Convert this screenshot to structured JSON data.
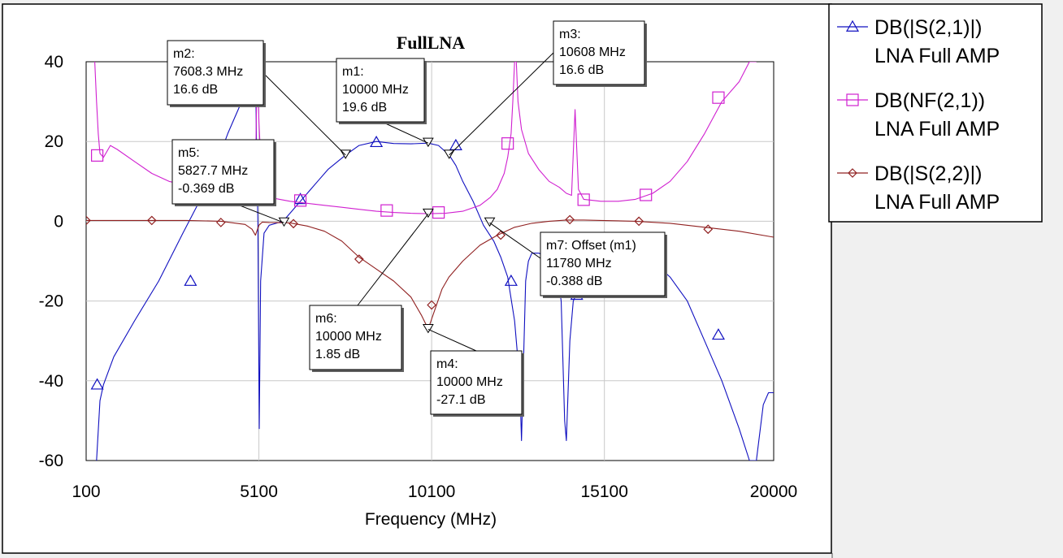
{
  "chart_data": {
    "type": "line",
    "title": "FullLNA",
    "xlabel": "Frequency (MHz)",
    "ylabel": "",
    "xlim": [
      100,
      20000
    ],
    "ylim": [
      -60,
      40
    ],
    "x_ticks": [
      100,
      5100,
      10100,
      15100,
      20000
    ],
    "y_ticks": [
      40,
      20,
      0,
      -20,
      -40,
      -60
    ],
    "grid": true,
    "legend_position": "right",
    "series": [
      {
        "name": "DB(|S(2,1)|)",
        "subname": "LNA Full AMP",
        "color": "#1010c0",
        "symbol": "triangle-up",
        "x": [
          400,
          500,
          600,
          900,
          1500,
          2200,
          2900,
          3500,
          3900,
          4200,
          4500,
          4700,
          4850,
          4950,
          5000,
          5030,
          5070,
          5110,
          5150,
          5250,
          5400,
          5600,
          5800,
          6000,
          6300,
          6500,
          6800,
          7100,
          7608,
          8000,
          8500,
          9000,
          9500,
          10000,
          10300,
          10608,
          10800,
          11000,
          11300,
          11600,
          11900,
          12100,
          12300,
          12500,
          12650,
          12700,
          12760,
          12820,
          12900,
          13000,
          13200,
          13500,
          13700,
          13850,
          13950,
          14000,
          14100,
          14200,
          14400,
          14600,
          14800,
          15000,
          15500,
          16000,
          16500,
          17000,
          17500,
          18000,
          18500,
          19000,
          19300,
          19500,
          19700,
          19850,
          20000
        ],
        "y": [
          -60,
          -45,
          -41,
          -34,
          -25,
          -15,
          -3,
          7,
          15,
          22,
          28,
          32,
          36,
          38,
          40,
          20,
          0,
          -52,
          -15,
          -3,
          -1,
          -0.5,
          0,
          2,
          5,
          7,
          10,
          13,
          16.6,
          19,
          20,
          19.5,
          19.4,
          19.6,
          19,
          16.6,
          14,
          10,
          5,
          -1,
          -5,
          -9,
          -14,
          -25,
          -40,
          -55,
          -35,
          -15,
          -10,
          -8,
          -8,
          -9,
          -11,
          -20,
          -50,
          -55,
          -30,
          -20,
          -16,
          -12,
          -10,
          -9,
          -8,
          -8,
          -10,
          -14,
          -20,
          -30,
          -40,
          -52,
          -60,
          -60,
          -46,
          -43,
          -43
        ],
        "markers_x": [
          420,
          3120,
          6300,
          8500,
          10800,
          12400,
          14300,
          18400
        ],
        "markers_y": [
          -41,
          -15,
          5.5,
          19.8,
          19,
          -15,
          -18.5,
          -28.5
        ]
      },
      {
        "name": "DB(NF(2,1))",
        "subname": "LNA Full AMP",
        "color": "#d020d0",
        "symbol": "square",
        "x": [
          350,
          400,
          450,
          500,
          600,
          800,
          1000,
          1500,
          2000,
          2500,
          3000,
          3500,
          4000,
          4500,
          4900,
          5000,
          5050,
          5100,
          5200,
          5400,
          5700,
          6000,
          6500,
          7000,
          7500,
          8000,
          8500,
          9000,
          9500,
          10000,
          10500,
          11000,
          11500,
          11800,
          12000,
          12200,
          12300,
          12400,
          12450,
          12500,
          12550,
          12600,
          12700,
          12900,
          13200,
          13500,
          13800,
          14000,
          14150,
          14250,
          14350,
          14500,
          15000,
          15500,
          16000,
          16500,
          17000,
          17500,
          18000,
          18500,
          19000,
          19300,
          19500
        ],
        "y": [
          40,
          30,
          22,
          17,
          16,
          19,
          18,
          15,
          12,
          10,
          9,
          7.5,
          6.5,
          5.5,
          6,
          10,
          40,
          25,
          7,
          6,
          5.5,
          5,
          4.5,
          4,
          3.5,
          3,
          2.5,
          2.2,
          2,
          1.9,
          2,
          2.5,
          4,
          6,
          8,
          12,
          16,
          22,
          30,
          40,
          40,
          30,
          23,
          17,
          13,
          10,
          8.5,
          7,
          6.5,
          28,
          8,
          5.5,
          5,
          5,
          5.5,
          7,
          10,
          15,
          22,
          30,
          35,
          40,
          40
        ],
        "markers_x": [
          420,
          2900,
          6300,
          8800,
          10300,
          12300,
          14500,
          16300,
          18400
        ],
        "markers_y": [
          16.5,
          8.3,
          5.2,
          2.7,
          2.2,
          19.5,
          5.4,
          6.6,
          31
        ],
        "markers_symbols": [],
        "marker_symbol_note": ""
      },
      {
        "name": "DB(|S(2,2)|)",
        "subname": "LNA Full AMP",
        "color": "#902020",
        "symbol": "diamond",
        "x": [
          100,
          1000,
          2000,
          3000,
          4000,
          4700,
          4900,
          5000,
          5100,
          5200,
          5400,
          5600,
          5800,
          6000,
          6500,
          7000,
          7500,
          8000,
          8500,
          9000,
          9500,
          9800,
          10000,
          10200,
          10400,
          10600,
          11000,
          11500,
          12000,
          12500,
          13000,
          13500,
          14000,
          14500,
          15000,
          16000,
          17000,
          18000,
          19000,
          20000
        ],
        "y": [
          0.2,
          0.2,
          0.2,
          0.2,
          0,
          -0.8,
          -2,
          -3.5,
          -1,
          -0.2,
          -0.3,
          -0.35,
          -0.37,
          -0.4,
          -1.2,
          -2.5,
          -5,
          -9,
          -12,
          -15,
          -19,
          -23.5,
          -27,
          -22,
          -17,
          -14,
          -10,
          -6,
          -3.5,
          -1.5,
          -0.5,
          0,
          0.3,
          0.3,
          0.2,
          0,
          -0.5,
          -1.5,
          -2.5,
          -4
        ],
        "markers_x": [
          100,
          2000,
          4000,
          6100,
          8000,
          10100,
          12100,
          14100,
          16100,
          18100
        ],
        "markers_y": [
          0.2,
          0.2,
          -0.3,
          -0.6,
          -9.5,
          -21,
          -3.5,
          0.4,
          0,
          -2
        ]
      }
    ],
    "annotations": [
      {
        "id": "m1",
        "lines": [
          "m1:",
          "10000 MHz",
          "19.6 dB"
        ]
      },
      {
        "id": "m2",
        "lines": [
          "m2:",
          "7608.3 MHz",
          "16.6 dB"
        ]
      },
      {
        "id": "m3",
        "lines": [
          "m3:",
          "10608 MHz",
          "16.6 dB"
        ]
      },
      {
        "id": "m4",
        "lines": [
          "m4:",
          "10000 MHz",
          "-27.1 dB"
        ]
      },
      {
        "id": "m5",
        "lines": [
          "m5:",
          "5827.7 MHz",
          "-0.369 dB"
        ]
      },
      {
        "id": "m6",
        "lines": [
          "m6:",
          "10000 MHz",
          "1.85 dB"
        ]
      },
      {
        "id": "m7",
        "lines": [
          "m7: Offset (m1)",
          "11780 MHz",
          "-0.388 dB"
        ]
      }
    ],
    "marker_points": [
      {
        "id": "m1",
        "x": 10000,
        "y": 19.6
      },
      {
        "id": "m2",
        "x": 7608.3,
        "y": 16.6
      },
      {
        "id": "m3",
        "x": 10608,
        "y": 16.6
      },
      {
        "id": "m4",
        "x": 10000,
        "y": -27.1
      },
      {
        "id": "m5",
        "x": 5827.7,
        "y": -0.369
      },
      {
        "id": "m6",
        "x": 10000,
        "y": 1.85
      },
      {
        "id": "m7",
        "x": 11780,
        "y": -0.388
      }
    ]
  }
}
